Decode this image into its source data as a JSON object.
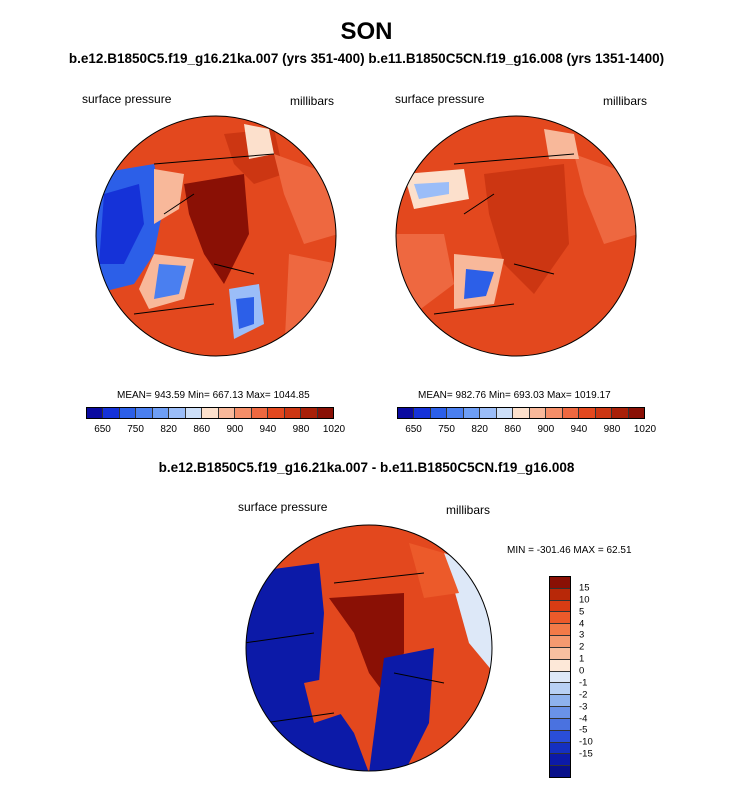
{
  "header": {
    "season": "SON",
    "subtitle": "b.e12.B1850C5.f19_g16.21ka.007 (yrs 351-400) b.e11.B1850C5CN.f19_g16.008 (yrs 1351-1400)"
  },
  "panels": [
    {
      "variable": "surface pressure",
      "units": "millibars",
      "stats": "MEAN= 943.59  Min= 667.13  Max= 1044.85"
    },
    {
      "variable": "surface pressure",
      "units": "millibars",
      "stats": "MEAN= 982.76  Min= 693.03  Max= 1019.17"
    }
  ],
  "abs_colorbar": {
    "colors": [
      "#0a0aa0",
      "#1532d8",
      "#2c5fe8",
      "#4a7ff0",
      "#6e9ef5",
      "#9bbdf8",
      "#cddff8",
      "#fce0cc",
      "#f8b89a",
      "#f58e68",
      "#ee6840",
      "#e3481e",
      "#cc3612",
      "#a82008",
      "#8a1005"
    ],
    "tick_labels": [
      "650",
      "750",
      "820",
      "860",
      "900",
      "940",
      "980",
      "1020"
    ]
  },
  "difference": {
    "title": "b.e12.B1850C5.f19_g16.21ka.007 - b.e11.B1850C5CN.f19_g16.008",
    "variable": "surface pressure",
    "units": "millibars",
    "minmax": "MIN = -301.46 MAX =  62.51"
  },
  "diff_colorbar": {
    "colors_top_to_bottom": [
      "#8a1005",
      "#b82808",
      "#d83c14",
      "#ec5a2a",
      "#f27a48",
      "#f49a70",
      "#f8c0a0",
      "#fde8d8",
      "#dde8f8",
      "#b8d0f4",
      "#8eb2ee",
      "#6a92e8",
      "#4a72e0",
      "#2a4ed8",
      "#1530c0",
      "#0c1aa8",
      "#08108a"
    ],
    "tick_labels": [
      "15",
      "10",
      "5",
      "4",
      "3",
      "2",
      "1",
      "0",
      "-1",
      "-2",
      "-3",
      "-4",
      "-5",
      "-10",
      "-15"
    ]
  }
}
